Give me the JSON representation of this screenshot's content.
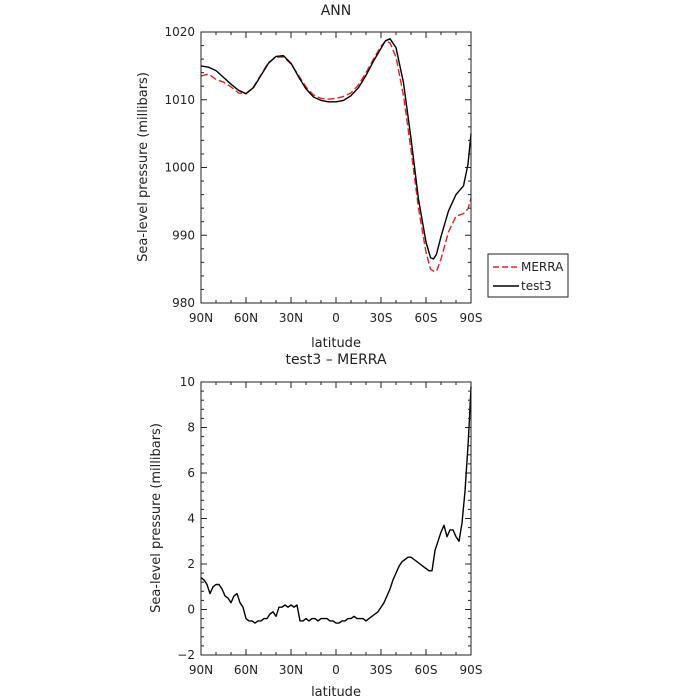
{
  "colors": {
    "merra": "#dd2222",
    "test3": "#000000",
    "axis": "#222222"
  },
  "chart_data": [
    {
      "type": "line",
      "title": "ANN",
      "xlabel": "latitude",
      "ylabel": "Sea-level pressure (millibars)",
      "xlim": [
        90,
        -90
      ],
      "ylim": [
        980,
        1020
      ],
      "x_ticks": [
        90,
        60,
        30,
        0,
        -30,
        -60,
        -90
      ],
      "x_tick_labels": [
        "90N",
        "60N",
        "30N",
        "0",
        "30S",
        "60S",
        "90S"
      ],
      "y_ticks": [
        980,
        990,
        1000,
        1010,
        1020
      ],
      "y_tick_labels": [
        "980",
        "990",
        "1000",
        "1010",
        "1020"
      ],
      "legend_position": "right",
      "series": [
        {
          "name": "MERRA",
          "style": "dashed",
          "color": "#dd2222",
          "x": [
            90,
            85,
            80,
            75,
            70,
            65,
            60,
            55,
            50,
            45,
            40,
            35,
            30,
            25,
            20,
            15,
            10,
            5,
            0,
            -5,
            -10,
            -15,
            -20,
            -25,
            -30,
            -33,
            -36,
            -40,
            -45,
            -50,
            -55,
            -60,
            -63,
            -65,
            -67,
            -70,
            -75,
            -80,
            -85,
            -88,
            -90
          ],
          "y": [
            1013.5,
            1013.8,
            1013.0,
            1012.6,
            1011.9,
            1011.0,
            1010.9,
            1011.9,
            1013.7,
            1015.5,
            1016.3,
            1016.3,
            1015.3,
            1013.6,
            1011.9,
            1010.7,
            1010.2,
            1010.1,
            1010.2,
            1010.5,
            1011.0,
            1012.2,
            1014.0,
            1016.0,
            1017.9,
            1018.7,
            1018.4,
            1016.3,
            1010.6,
            1002.6,
            994.0,
            987.5,
            985.0,
            984.7,
            984.7,
            986.5,
            990.5,
            992.8,
            993.2,
            993.9,
            995.5
          ]
        },
        {
          "name": "test3",
          "style": "solid",
          "color": "#000000",
          "x": [
            90,
            85,
            80,
            75,
            70,
            65,
            60,
            55,
            50,
            45,
            40,
            35,
            30,
            25,
            20,
            15,
            10,
            5,
            0,
            -5,
            -10,
            -15,
            -20,
            -25,
            -30,
            -33,
            -36,
            -40,
            -45,
            -50,
            -55,
            -60,
            -63,
            -65,
            -67,
            -70,
            -75,
            -80,
            -85,
            -88,
            -90
          ],
          "y": [
            1015.0,
            1014.8,
            1014.3,
            1013.3,
            1012.3,
            1011.4,
            1010.9,
            1011.8,
            1013.6,
            1015.4,
            1016.4,
            1016.5,
            1015.4,
            1013.4,
            1011.6,
            1010.4,
            1009.9,
            1009.7,
            1009.7,
            1009.9,
            1010.6,
            1011.8,
            1013.6,
            1015.7,
            1017.6,
            1018.7,
            1019.0,
            1017.7,
            1012.5,
            1004.3,
            995.3,
            989.0,
            986.7,
            986.5,
            987.2,
            989.8,
            993.6,
            996.0,
            997.3,
            1000.5,
            1005.0
          ]
        }
      ]
    },
    {
      "type": "line",
      "title": "test3 – MERRA",
      "xlabel": "latitude",
      "ylabel": "Sea-level pressure (millibars)",
      "xlim": [
        90,
        -90
      ],
      "ylim": [
        -2,
        10
      ],
      "x_ticks": [
        90,
        60,
        30,
        0,
        -30,
        -60,
        -90
      ],
      "x_tick_labels": [
        "90N",
        "60N",
        "30N",
        "0",
        "30S",
        "60S",
        "90S"
      ],
      "y_ticks": [
        -2,
        0,
        2,
        4,
        6,
        8,
        10
      ],
      "y_tick_labels": [
        "−2",
        "0",
        "2",
        "4",
        "6",
        "8",
        "10"
      ],
      "series": [
        {
          "style": "solid",
          "color": "#000000",
          "x": [
            90,
            88,
            86,
            84,
            82,
            80,
            78,
            76,
            74,
            72,
            70,
            68,
            66,
            64,
            62,
            60,
            58,
            56,
            54,
            52,
            50,
            48,
            46,
            44,
            42,
            40,
            38,
            36,
            34,
            32,
            30,
            28,
            26,
            24,
            22,
            20,
            18,
            16,
            14,
            12,
            10,
            8,
            6,
            4,
            2,
            0,
            -2,
            -4,
            -6,
            -8,
            -10,
            -12,
            -14,
            -16,
            -18,
            -20,
            -22,
            -24,
            -26,
            -28,
            -30,
            -32,
            -34,
            -36,
            -38,
            -40,
            -42,
            -44,
            -46,
            -48,
            -50,
            -52,
            -54,
            -56,
            -58,
            -60,
            -62,
            -64,
            -66,
            -67,
            -68,
            -70,
            -72,
            -74,
            -76,
            -78,
            -80,
            -82,
            -84,
            -86,
            -88,
            -89,
            -90
          ],
          "y": [
            1.4,
            1.3,
            1.1,
            0.7,
            1.0,
            1.1,
            1.1,
            0.9,
            0.6,
            0.5,
            0.3,
            0.6,
            0.7,
            0.3,
            0.1,
            -0.4,
            -0.5,
            -0.5,
            -0.6,
            -0.5,
            -0.5,
            -0.4,
            -0.4,
            -0.2,
            -0.1,
            -0.3,
            0.1,
            0.1,
            0.2,
            0.1,
            0.2,
            0.1,
            0.2,
            -0.5,
            -0.5,
            -0.4,
            -0.5,
            -0.4,
            -0.4,
            -0.5,
            -0.4,
            -0.4,
            -0.4,
            -0.5,
            -0.5,
            -0.6,
            -0.6,
            -0.5,
            -0.5,
            -0.4,
            -0.4,
            -0.3,
            -0.4,
            -0.4,
            -0.4,
            -0.5,
            -0.4,
            -0.3,
            -0.2,
            -0.1,
            0.1,
            0.3,
            0.6,
            0.9,
            1.3,
            1.6,
            1.9,
            2.1,
            2.2,
            2.3,
            2.3,
            2.2,
            2.1,
            2.0,
            1.9,
            1.8,
            1.7,
            1.7,
            2.6,
            2.8,
            3.0,
            3.4,
            3.7,
            3.2,
            3.5,
            3.5,
            3.2,
            3.0,
            3.8,
            5.2,
            7.2,
            8.4,
            9.8
          ]
        }
      ]
    }
  ]
}
